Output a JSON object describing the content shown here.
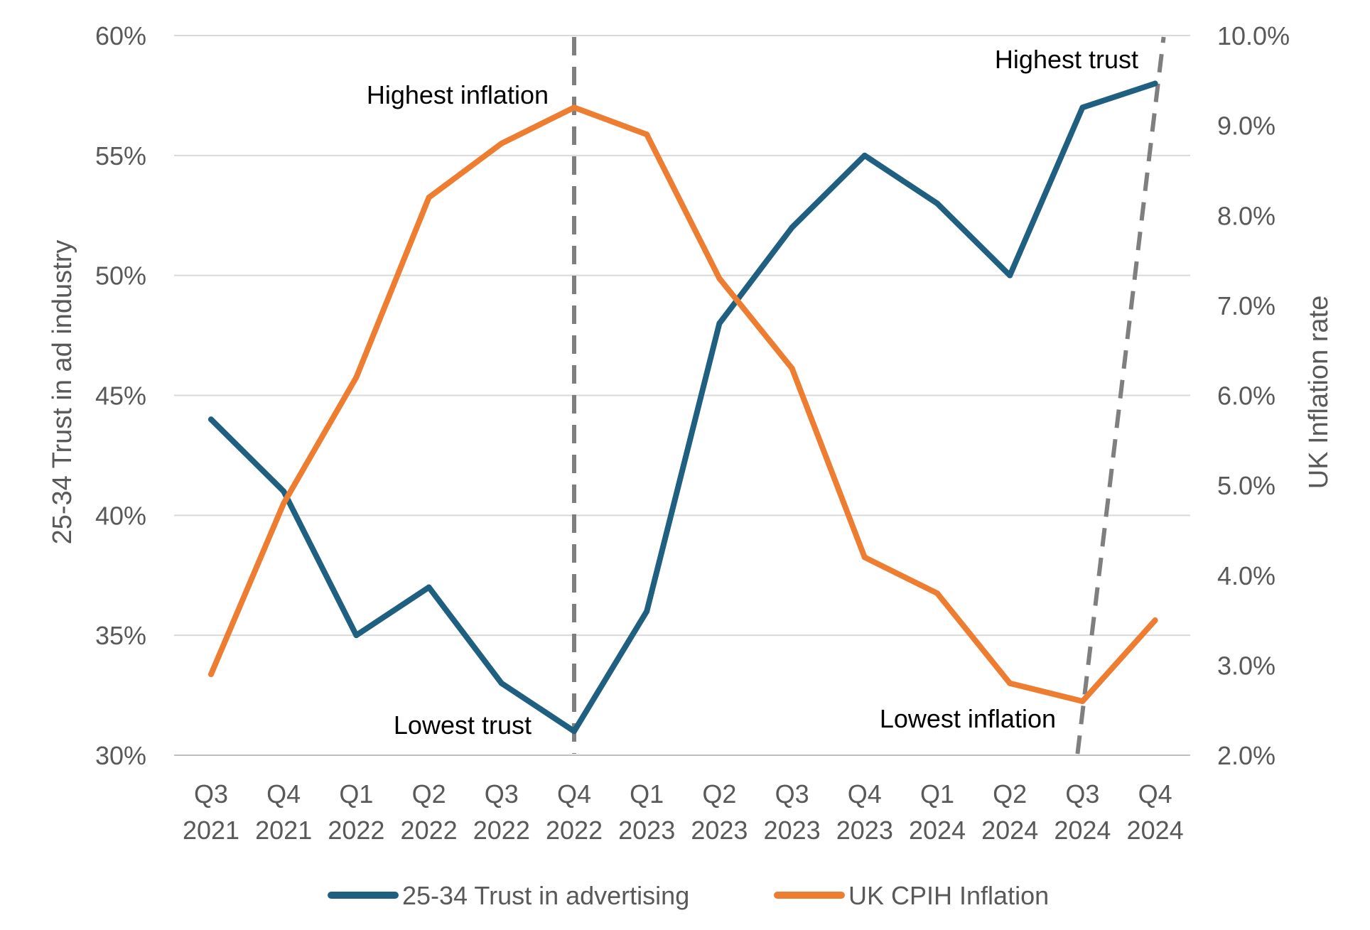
{
  "chart_data": {
    "type": "line",
    "categories": [
      [
        "Q3",
        "2021"
      ],
      [
        "Q4",
        "2021"
      ],
      [
        "Q1",
        "2022"
      ],
      [
        "Q2",
        "2022"
      ],
      [
        "Q3",
        "2022"
      ],
      [
        "Q4",
        "2022"
      ],
      [
        "Q1",
        "2023"
      ],
      [
        "Q2",
        "2023"
      ],
      [
        "Q3",
        "2023"
      ],
      [
        "Q4",
        "2023"
      ],
      [
        "Q1",
        "2024"
      ],
      [
        "Q2",
        "2024"
      ],
      [
        "Q3",
        "2024"
      ],
      [
        "Q4",
        "2024"
      ]
    ],
    "ylabel_left": "25-34 Trust in ad industry",
    "ylabel_right": "UK Inflation rate",
    "ylim_left": [
      30,
      60
    ],
    "ylim_right": [
      2.0,
      10.0
    ],
    "left_ticks": [
      "30%",
      "35%",
      "40%",
      "45%",
      "50%",
      "55%",
      "60%"
    ],
    "right_ticks": [
      "2.0%",
      "3.0%",
      "4.0%",
      "5.0%",
      "6.0%",
      "7.0%",
      "8.0%",
      "9.0%",
      "10.0%"
    ],
    "grid": true,
    "legend_position": "bottom",
    "series": [
      {
        "name": "25-34 Trust in advertising",
        "axis": "left",
        "color": "#1f5f7f",
        "values": [
          44,
          41,
          35,
          37,
          33,
          31,
          36,
          48,
          52,
          55,
          53,
          50,
          57,
          58
        ]
      },
      {
        "name": "UK CPIH Inflation",
        "axis": "right",
        "color": "#ed7d31",
        "values": [
          2.9,
          4.8,
          6.2,
          8.2,
          8.8,
          9.2,
          8.9,
          7.3,
          6.3,
          4.2,
          3.8,
          2.8,
          2.6,
          3.5
        ]
      }
    ],
    "annotations": [
      {
        "text": "Highest inflation",
        "category_index": 5
      },
      {
        "text": "Lowest trust",
        "category_index": 5
      },
      {
        "text": "Highest trust",
        "category_index": 13
      },
      {
        "text": "Lowest inflation",
        "category_index": 12
      }
    ],
    "reference_lines": [
      {
        "style": "dashed",
        "color": "#7f7f7f",
        "from_category": 5,
        "to_category": 5
      },
      {
        "style": "dashed",
        "color": "#7f7f7f",
        "from_category": 12,
        "to_category": 13
      }
    ]
  }
}
